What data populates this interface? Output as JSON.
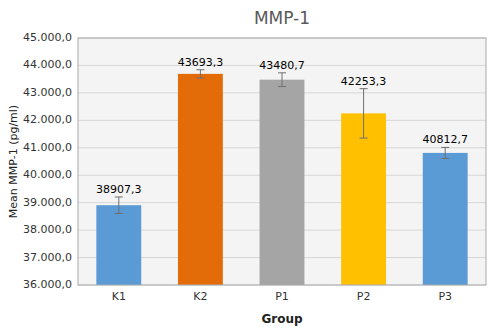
{
  "chart_data": {
    "type": "bar",
    "title": "MMP-1",
    "xlabel": "Group",
    "ylabel": "Mean MMP-1 (pg/ml)",
    "categories": [
      "K1",
      "K2",
      "P1",
      "P2",
      "P3"
    ],
    "values": [
      38907.3,
      43693.3,
      43480.7,
      42253.3,
      40812.7
    ],
    "errors": [
      300,
      150,
      250,
      900,
      200
    ],
    "value_labels": [
      "38907,3",
      "43693,3",
      "43480,7",
      "42253,3",
      "40812,7"
    ],
    "data_labels": true,
    "colors": [
      "#5B9BD5",
      "#E36C09",
      "#A5A5A5",
      "#FFC000",
      "#5B9BD5"
    ],
    "ylim": [
      36000,
      45000
    ],
    "yticks": [
      {
        "value": 36000,
        "label": "36.000,0"
      },
      {
        "value": 37000,
        "label": "37.000,0"
      },
      {
        "value": 38000,
        "label": "38.000,0"
      },
      {
        "value": 39000,
        "label": "39.000,0"
      },
      {
        "value": 40000,
        "label": "40.000,0"
      },
      {
        "value": 41000,
        "label": "41.000,0"
      },
      {
        "value": 42000,
        "label": "42.000,0"
      },
      {
        "value": 43000,
        "label": "43.000,0"
      },
      {
        "value": 44000,
        "label": "44.000,0"
      },
      {
        "value": 45000,
        "label": "45.000,0"
      }
    ],
    "grid": true
  }
}
